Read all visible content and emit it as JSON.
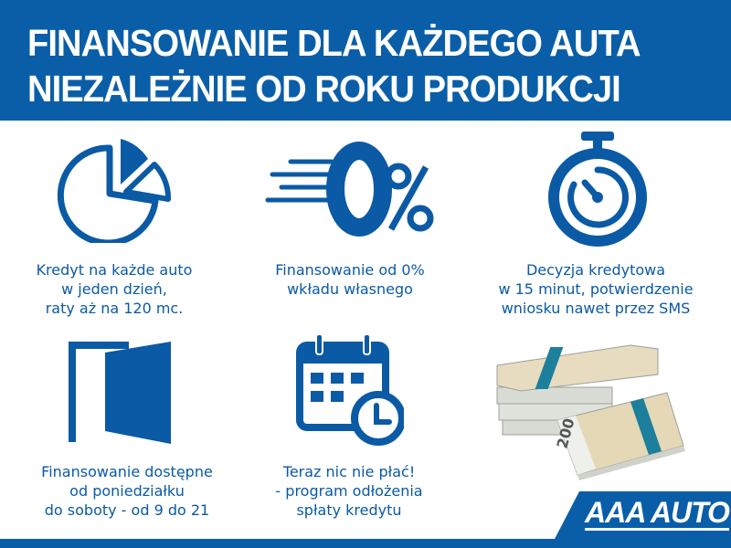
{
  "header": {
    "line1": "FINANSOWANIE DLA KAŻDEGO AUTA",
    "line2": "NIEZALEŻNIE OD ROKU PRODUKCJI"
  },
  "features": [
    {
      "icon": "pie-chart-icon",
      "lines": [
        "Kredyt na każde auto",
        "w jeden dzień,",
        "raty aż na 120 mc."
      ]
    },
    {
      "icon": "zero-percent-icon",
      "icon_text": "0%",
      "lines": [
        "Finansowanie od 0%",
        "wkładu własnego"
      ]
    },
    {
      "icon": "stopwatch-icon",
      "lines": [
        "Decyzja kredytowa",
        "w 15 minut, potwierdzenie",
        "wniosku nawet przez SMS"
      ]
    },
    {
      "icon": "open-door-icon",
      "lines": [
        "Finansowanie dostępne",
        "od poniedziałku",
        "do soboty - od 9 do 21"
      ]
    },
    {
      "icon": "calendar-clock-icon",
      "lines": [
        "Teraz nic nie płać!",
        "- program odłożenia",
        "spłaty kredytu"
      ]
    }
  ],
  "money_image": {
    "icon": "banknote-stack-icon",
    "note_value": "200"
  },
  "logo": {
    "text": "AAA AUTO"
  },
  "colors": {
    "brand_blue": "#0a5ea8",
    "white": "#ffffff"
  }
}
